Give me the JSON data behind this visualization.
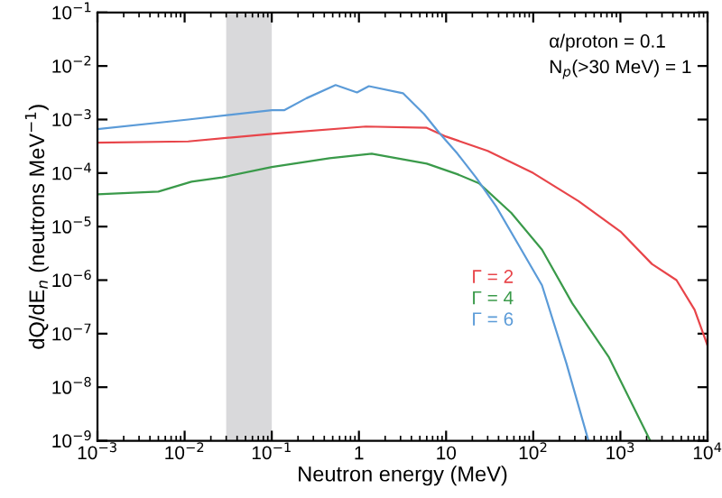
{
  "chart_data": {
    "type": "line",
    "xlabel": "Neutron energy (MeV)",
    "ylabel": "dQ/dE$_{n}$ (neutrons MeV$^{−1}$)",
    "log": "xy",
    "xlim": [
      0.001,
      10000
    ],
    "ylim": [
      1e-09,
      0.1
    ],
    "xticks": [
      {
        "value": 0.001,
        "label": "10$^{−3}$"
      },
      {
        "value": 0.01,
        "label": "10$^{−2}$"
      },
      {
        "value": 0.1,
        "label": "10$^{−1}$"
      },
      1,
      10,
      {
        "value": 100,
        "label": "10$^{2}$"
      },
      {
        "value": 1000,
        "label": "10$^{3}$"
      },
      {
        "value": 10000,
        "label": "10$^{4}$"
      }
    ],
    "yticks": [
      {
        "value": 1e-09,
        "label": "10$^{−9}$"
      },
      {
        "value": 1e-08,
        "label": "10$^{−8}$"
      },
      {
        "value": 1e-07,
        "label": "10$^{−7}$"
      },
      {
        "value": 1e-06,
        "label": "10$^{−6}$"
      },
      {
        "value": 1e-05,
        "label": "10$^{−5}$"
      },
      {
        "value": 0.0001,
        "label": "10$^{−4}$"
      },
      {
        "value": 0.001,
        "label": "10$^{−3}$"
      },
      {
        "value": 0.01,
        "label": "10$^{−2}$"
      },
      {
        "value": 0.1,
        "label": "10$^{−1}$"
      }
    ],
    "grid": false,
    "legend": "center",
    "marker": "none",
    "line_style": "solid",
    "bands": [
      {
        "axis": "x",
        "from": 0.03,
        "to": 0.1,
        "color": "#d9d9db"
      }
    ],
    "annotations": [
      "α/proton = 0.1",
      "N$_{p}$(>30 MeV) = 1"
    ],
    "series": [
      {
        "name": "Γ = 2",
        "color": "#e8454a",
        "x": [
          0.001,
          0.011,
          0.1,
          1.2,
          6,
          10,
          30,
          100,
          330,
          1000,
          2300,
          4400,
          7100,
          10000
        ],
        "values": [
          0.00037,
          0.00039,
          0.00054,
          0.00074,
          0.0007,
          0.00048,
          0.00026,
          0.0001,
          3e-05,
          8.1e-06,
          2e-06,
          1e-06,
          2.8e-07,
          6e-08
        ]
      },
      {
        "name": "Γ = 4",
        "color": "#3a9a4a",
        "x": [
          0.001,
          0.005,
          0.012,
          0.027,
          0.1,
          0.46,
          1.4,
          6,
          13.5,
          24,
          56,
          126,
          280,
          740,
          2200
        ],
        "values": [
          4e-05,
          4.5e-05,
          6.9e-05,
          8.3e-05,
          0.00013,
          0.00019,
          0.00023,
          0.00015,
          9.5e-05,
          6.4e-05,
          1.8e-05,
          3.7e-06,
          3.7e-07,
          3.6e-08,
          1e-09
        ]
      },
      {
        "name": "Γ = 6",
        "color": "#5b9bd8",
        "x": [
          0.001,
          0.011,
          0.1,
          0.14,
          0.25,
          0.54,
          0.95,
          1.3,
          3.2,
          5.6,
          8.3,
          13.5,
          22,
          38,
          66,
          126,
          240,
          430
        ],
        "values": [
          0.00066,
          0.001,
          0.0015,
          0.0015,
          0.0025,
          0.0044,
          0.0032,
          0.0042,
          0.0031,
          0.00126,
          0.00057,
          0.00023,
          8.3e-05,
          2.3e-05,
          4.9e-06,
          8e-07,
          2.8e-08,
          1e-09
        ]
      }
    ]
  }
}
